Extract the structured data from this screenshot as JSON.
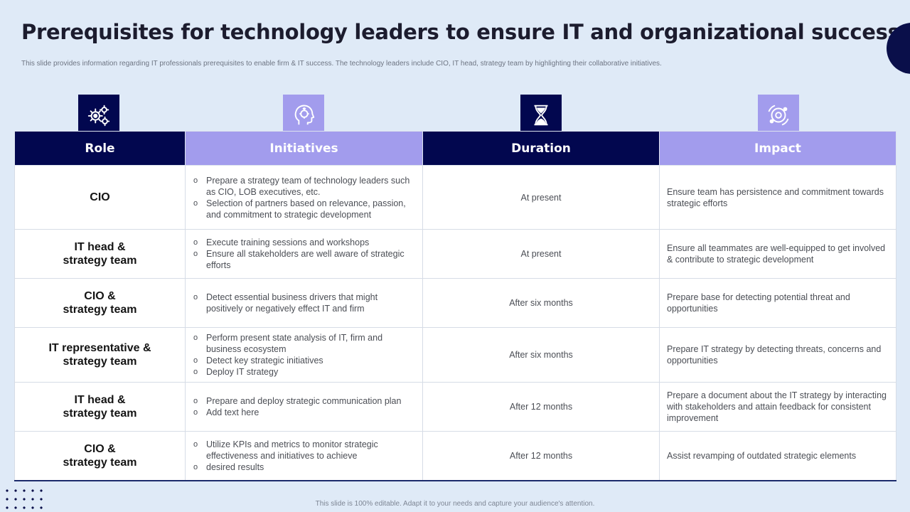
{
  "title": "Prerequisites for technology leaders to ensure IT and organizational success",
  "subtitle": "This slide provides information regarding IT professionals prerequisites to enable firm & IT success. The technology leaders include CIO, IT head, strategy team by highlighting their collaborative initiatives.",
  "columns": {
    "role": "Role",
    "initiatives": "Initiatives",
    "duration": "Duration",
    "impact": "Impact"
  },
  "icons": {
    "role": "gears-icon",
    "initiatives": "head-idea-icon",
    "duration": "hourglass-icon",
    "impact": "orbit-icon"
  },
  "rows": [
    {
      "role_line1": "CIO",
      "role_line2": "",
      "initiatives": [
        "Prepare a strategy team of technology leaders such as CIO, LOB executives, etc.",
        "Selection of partners based on relevance, passion, and commitment to strategic development"
      ],
      "duration": "At present",
      "impact": "Ensure team has persistence and commitment towards strategic efforts"
    },
    {
      "role_line1": "IT head &",
      "role_line2": "strategy team",
      "initiatives": [
        "Execute training sessions and workshops",
        "Ensure all stakeholders are well aware of strategic efforts"
      ],
      "duration": "At present",
      "impact": "Ensure all teammates are well-equipped to get involved & contribute to strategic development"
    },
    {
      "role_line1": "CIO &",
      "role_line2": "strategy team",
      "initiatives": [
        "Detect essential business drivers that might positively or negatively effect IT and firm"
      ],
      "duration": "After six months",
      "impact": "Prepare base for detecting potential threat and opportunities"
    },
    {
      "role_line1": "IT representative &",
      "role_line2": "strategy team",
      "initiatives": [
        "Perform present state analysis of IT, firm and business ecosystem",
        "Detect key strategic initiatives",
        "Deploy IT strategy"
      ],
      "duration": "After six months",
      "impact": "Prepare IT strategy by detecting threats, concerns and opportunities"
    },
    {
      "role_line1": "IT head &",
      "role_line2": "strategy team",
      "initiatives": [
        "Prepare and deploy strategic communication plan",
        "Add text here"
      ],
      "duration": "After 12 months",
      "impact": "Prepare a document about the IT strategy by interacting with stakeholders and attain feedback for consistent improvement"
    },
    {
      "role_line1": "CIO &",
      "role_line2": "strategy team",
      "initiatives": [
        "Utilize KPIs and metrics to monitor strategic effectiveness and initiatives to achieve",
        "desired results"
      ],
      "duration": "After 12 months",
      "impact": "Assist revamping of outdated strategic elements"
    }
  ],
  "footer": "This slide is 100% editable. Adapt it to your needs and capture your audience's attention.",
  "colors": {
    "background": "#dfeaf7",
    "dark_navy": "#02074f",
    "lavender": "#a29ced",
    "text_dark": "#141414",
    "text_body": "#4b4e55"
  }
}
